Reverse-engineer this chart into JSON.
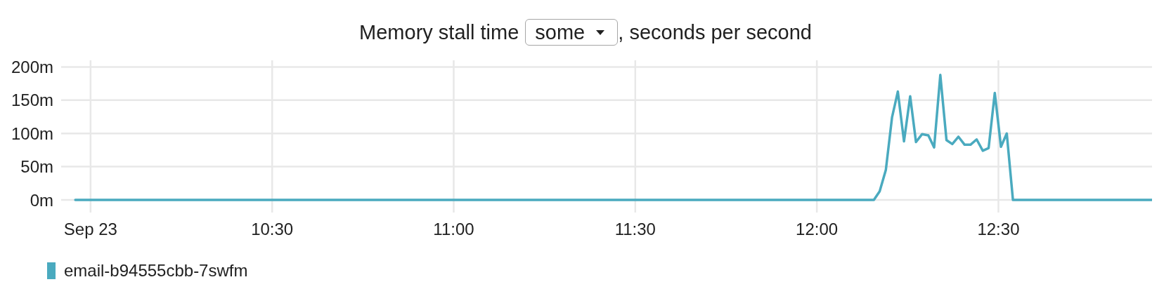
{
  "chart_data": {
    "type": "line",
    "title": "Memory stall time",
    "annotations": [
      "some",
      ", seconds per second"
    ],
    "x": [
      9.958,
      12.157,
      12.173,
      12.19,
      12.207,
      12.223,
      12.24,
      12.257,
      12.273,
      12.29,
      12.307,
      12.323,
      12.34,
      12.357,
      12.373,
      12.39,
      12.407,
      12.423,
      12.44,
      12.457,
      12.473,
      12.49,
      12.507,
      12.523,
      12.54,
      12.922
    ],
    "series": [
      {
        "name": "email-b94555cbb-7swfm",
        "color": "#4aaabf",
        "values": [
          0,
          0,
          13,
          45,
          124,
          163,
          88,
          156,
          87,
          99,
          97,
          79,
          188,
          90,
          84,
          95,
          83,
          83,
          91,
          74,
          78,
          161,
          80,
          100,
          0,
          0
        ]
      }
    ],
    "xlim": [
      9.919,
      12.923
    ],
    "xticks": [
      {
        "value": 10,
        "label": "Sep 23"
      },
      {
        "value": 10.5,
        "label": "10:30"
      },
      {
        "value": 11,
        "label": "11:00"
      },
      {
        "value": 11.5,
        "label": "11:30"
      },
      {
        "value": 12,
        "label": "12:00"
      },
      {
        "value": 12.5,
        "label": "12:30"
      }
    ],
    "ylim": [
      -19,
      210
    ],
    "yticks": [
      {
        "value": 0,
        "label": "0m"
      },
      {
        "value": 50,
        "label": "50m"
      },
      {
        "value": 100,
        "label": "100m"
      },
      {
        "value": 150,
        "label": "150m"
      },
      {
        "value": 200,
        "label": "200m"
      }
    ],
    "grid": true,
    "legend": "bottom left"
  }
}
